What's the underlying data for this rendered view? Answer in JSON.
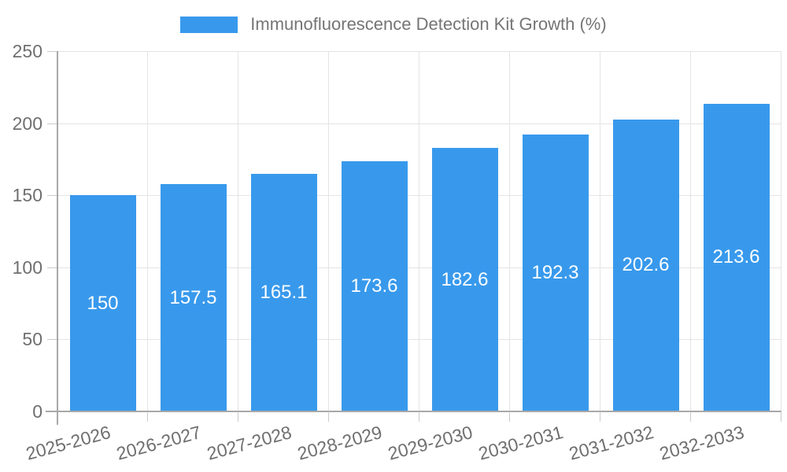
{
  "legend": {
    "label": "Immunofluorescence Detection Kit Growth (%)"
  },
  "chart_data": {
    "type": "bar",
    "title": "",
    "series_name": "Immunofluorescence Detection Kit Growth (%)",
    "categories": [
      "2025-2026",
      "2026-2027",
      "2027-2028",
      "2028-2029",
      "2029-2030",
      "2030-2031",
      "2031-2032",
      "2032-2033"
    ],
    "values": [
      150,
      157.5,
      165.1,
      173.6,
      182.6,
      192.3,
      202.6,
      213.6
    ],
    "value_labels": [
      "150",
      "157.5",
      "165.1",
      "173.6",
      "182.6",
      "192.3",
      "202.6",
      "213.6"
    ],
    "xlabel": "",
    "ylabel": "",
    "ylim": [
      0,
      250
    ],
    "y_ticks": [
      0,
      50,
      100,
      150,
      200,
      250
    ],
    "y_tick_labels": [
      "0",
      "50",
      "100",
      "150",
      "200",
      "250"
    ],
    "grid": true,
    "legend_position": "top-center",
    "x_label_rotation_deg": -15,
    "colors": {
      "bar": "#3899ec",
      "grid": "#e4e4e4",
      "axis": "#a8a8a8",
      "tick": "#c9c9c9",
      "text": "#6f6f6f",
      "value_label": "#ffffff",
      "background": "#ffffff"
    }
  }
}
